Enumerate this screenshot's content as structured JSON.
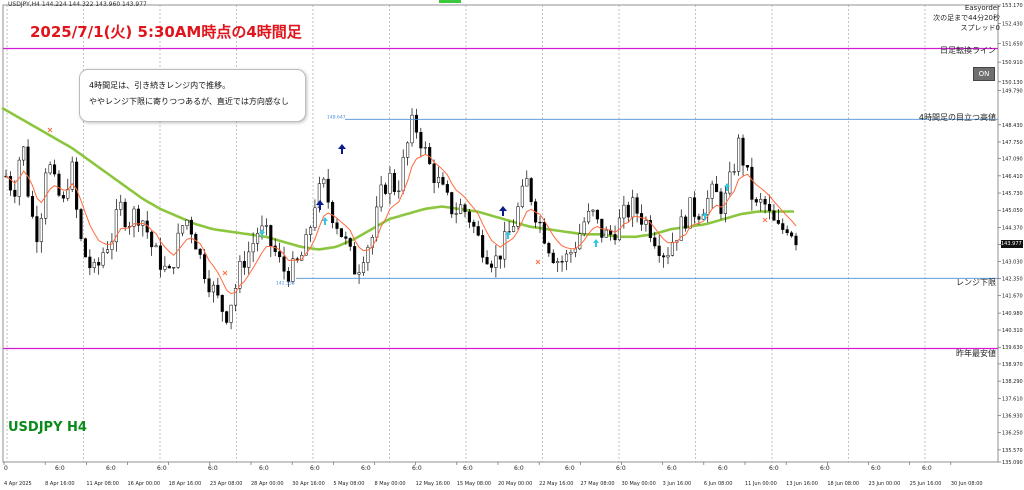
{
  "header": {
    "info": "USDJPY,H4  144.224 144.322 143.960 143.977"
  },
  "title": "2025/7/1(火) 5:30AM時点の4時間足",
  "symbol_label": "USDJPY H4",
  "comment": {
    "line1": "4時間足は、引き続きレンジ内で推移。",
    "line2": "ややレンジ下限に寄りつつあるが、直近では方向感なし"
  },
  "easyorder": {
    "name": "Easyorder",
    "next_bar": "次の足まで44分20秒",
    "spread": "スプレッド0"
  },
  "on_button": "ON",
  "current_price": "143.977",
  "colors": {
    "bull": "#000000",
    "bear": "#000000",
    "ma_slow": "#8cc63f",
    "ma_fast": "#ff6a3d",
    "range_line": "#4a90d9",
    "key_line": "#d41ad4",
    "title": "#e0141c",
    "symbol": "#0a8a1a"
  },
  "chart_data": {
    "type": "candlestick",
    "symbol": "USDJPY",
    "timeframe": "H4",
    "ylim": [
      135.09,
      153.17
    ],
    "y_ticks": [
      "153.170",
      "152.430",
      "151.650",
      "150.910",
      "150.130",
      "149.790",
      "148.430",
      "147.750",
      "147.090",
      "146.410",
      "145.730",
      "145.050",
      "144.370",
      "143.690",
      "143.030",
      "142.350",
      "141.670",
      "140.980",
      "140.310",
      "139.630",
      "138.970",
      "138.290",
      "137.610",
      "136.930",
      "136.250",
      "135.570",
      "135.090"
    ],
    "x_ticks": [
      "4 Apr 2025",
      "8 Apr 16:00",
      "11 Apr 08:00",
      "16 Apr 00:00",
      "18 Apr 16:00",
      "23 Apr 08:00",
      "28 Apr 00:00",
      "30 Apr 16:00",
      "5 May 08:00",
      "8 May 00:00",
      "12 May 16:00",
      "15 May 08:00",
      "20 May 00:00",
      "22 May 16:00",
      "27 May 08:00",
      "30 May 00:00",
      "3 Jun 16:00",
      "6 Jun 08:00",
      "11 Jun 00:00",
      "13 Jun 16:00",
      "18 Jun 08:00",
      "23 Jun 00:00",
      "25 Jun 16:00",
      "30 Jun 08:00"
    ],
    "bottom_marks": [
      "0",
      "6:0",
      "6:0",
      "6:0",
      "6:0",
      "6:0",
      "6:0",
      "6:0",
      "6:0",
      "6:0",
      "6:0",
      "6:0",
      "6:0",
      "6:0",
      "6:0",
      "6:0",
      "6:0",
      "6:0",
      "6:0"
    ],
    "close_path": [
      146.4,
      145.8,
      147.9,
      145.0,
      144.0,
      147.2,
      146.0,
      145.2,
      147.0,
      144.0,
      143.0,
      142.5,
      143.5,
      144.0,
      145.2,
      144.6,
      145.0,
      144.6,
      143.5,
      143.0,
      142.4,
      143.7,
      144.8,
      144.2,
      143.0,
      142.2,
      141.5,
      140.9,
      141.8,
      143.0,
      143.5,
      144.3,
      144.0,
      143.4,
      142.7,
      142.6,
      143.0,
      143.8,
      145.5,
      146.0,
      145.0,
      144.3,
      143.5,
      142.6,
      143.5,
      144.0,
      145.6,
      146.4,
      145.8,
      147.2,
      148.6,
      147.8,
      146.8,
      146.2,
      145.5,
      145.0,
      145.2,
      144.7,
      143.9,
      143.4,
      143.0,
      143.6,
      144.3,
      145.2,
      146.2,
      145.0,
      144.2,
      143.4,
      143.0,
      143.2,
      143.8,
      144.6,
      144.9,
      144.2,
      144.0,
      144.4,
      144.9,
      145.2,
      144.8,
      144.4,
      143.8,
      143.3,
      144.0,
      144.5,
      145.1,
      145.0,
      145.4,
      145.8,
      145.1,
      146.3,
      147.7,
      146.4,
      145.1,
      145.4,
      144.6,
      144.2,
      144.5,
      143.98
    ],
    "ma_slow": [
      149.1,
      148.7,
      148.3,
      147.9,
      147.5,
      147.0,
      146.5,
      146.0,
      145.5,
      145.1,
      144.8,
      144.5,
      144.3,
      144.2,
      144.1,
      144.0,
      143.8,
      143.6,
      143.5,
      143.6,
      143.9,
      144.3,
      144.7,
      144.9,
      145.1,
      145.2,
      145.1,
      145.0,
      144.8,
      144.6,
      144.4,
      144.3,
      144.2,
      144.1,
      144.1,
      144.0,
      144.0,
      144.1,
      144.3,
      144.4,
      144.5,
      144.7,
      144.9,
      145.0,
      145.0,
      145.0
    ],
    "reference_lines": [
      {
        "label": "日足転換ライン",
        "value": 151.45
      },
      {
        "label": "4時間足の目立つ高値",
        "value": 148.647
      },
      {
        "label": "レンジ下限",
        "value": 142.358
      },
      {
        "label": "昨年最安値",
        "value": 139.58
      }
    ],
    "point_labels": [
      {
        "text": "148.647"
      },
      {
        "text": "142.358"
      }
    ]
  }
}
